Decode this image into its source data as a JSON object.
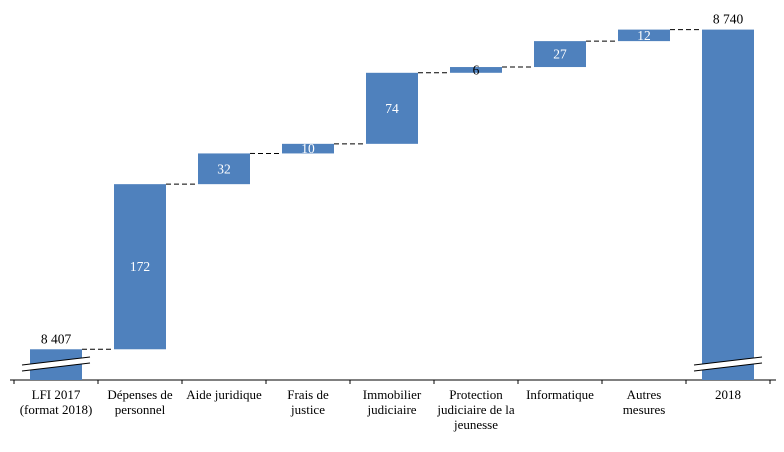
{
  "chart_data": {
    "type": "waterfall",
    "title": "",
    "xlabel": "",
    "ylabel": "",
    "categories": [
      "LFI 2017 (format 2018)",
      "Dépenses de personnel",
      "Aide juridique",
      "Frais de justice",
      "Immobilier judiciaire",
      "Protection judiciaire de la jeunesse",
      "Informatique",
      "Autres mesures",
      "2018"
    ],
    "values": [
      8407,
      172,
      32,
      10,
      74,
      6,
      27,
      12,
      8740
    ],
    "bar_kinds": [
      "total",
      "delta",
      "delta",
      "delta",
      "delta",
      "delta",
      "delta",
      "delta",
      "total"
    ],
    "value_labels": [
      "8 407",
      "172",
      "32",
      "10",
      "74",
      "6",
      "27",
      "12",
      "8 740"
    ],
    "label_positions": [
      "above",
      "inside",
      "inside",
      "inside",
      "inside",
      "overlap",
      "inside",
      "inside",
      "above"
    ],
    "cumulative_levels": [
      8407,
      8579,
      8611,
      8621,
      8695,
      8701,
      8728,
      8740
    ],
    "axis_break_on": [
      0,
      8
    ],
    "ylim": [
      8375,
      8750
    ],
    "bar_color": "#4f81bd",
    "connector_style": "dashed",
    "connector_color": "#000000",
    "axis_color": "#000000",
    "value_label_color_inside": "#ffffff",
    "value_label_color_outside": "#000000",
    "grid": false,
    "legend": false
  }
}
